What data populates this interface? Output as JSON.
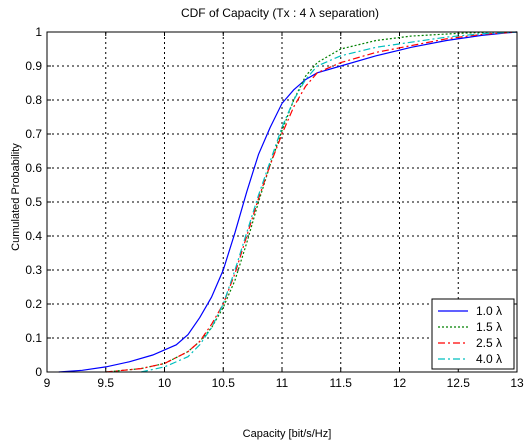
{
  "chart_data": {
    "type": "line",
    "title": "CDF of Capacity (Tx : 4 λ separation)",
    "xlabel": "Capacity [bit/s/Hz]",
    "ylabel": "Cumulated Probability",
    "xlim": [
      9,
      13
    ],
    "ylim": [
      0,
      1
    ],
    "xticks": [
      "9",
      "9.5",
      "10",
      "10.5",
      "11",
      "11.5",
      "12",
      "12.5",
      "13"
    ],
    "yticks": [
      "0",
      "0.1",
      "0.2",
      "0.3",
      "0.4",
      "0.5",
      "0.6",
      "0.7",
      "0.8",
      "0.9",
      "1"
    ],
    "grid": true,
    "legend_position": "bottom-right",
    "series": [
      {
        "name": "1.0 λ",
        "color": "#0000ff",
        "dash": "solid",
        "points": [
          [
            9.1,
            0
          ],
          [
            9.3,
            0.005
          ],
          [
            9.5,
            0.015
          ],
          [
            9.7,
            0.03
          ],
          [
            9.9,
            0.05
          ],
          [
            10.0,
            0.065
          ],
          [
            10.1,
            0.08
          ],
          [
            10.2,
            0.11
          ],
          [
            10.3,
            0.16
          ],
          [
            10.4,
            0.22
          ],
          [
            10.5,
            0.3
          ],
          [
            10.6,
            0.41
          ],
          [
            10.7,
            0.53
          ],
          [
            10.8,
            0.64
          ],
          [
            10.9,
            0.72
          ],
          [
            11.0,
            0.79
          ],
          [
            11.1,
            0.83
          ],
          [
            11.2,
            0.86
          ],
          [
            11.3,
            0.88
          ],
          [
            11.5,
            0.9
          ],
          [
            11.8,
            0.93
          ],
          [
            12.1,
            0.955
          ],
          [
            12.4,
            0.975
          ],
          [
            12.7,
            0.99
          ],
          [
            12.9,
            0.997
          ],
          [
            13.0,
            1.0
          ]
        ]
      },
      {
        "name": "1.5 λ",
        "color": "#008000",
        "dash": "dotted",
        "points": [
          [
            9.5,
            0
          ],
          [
            9.8,
            0.01
          ],
          [
            10.0,
            0.025
          ],
          [
            10.2,
            0.06
          ],
          [
            10.3,
            0.09
          ],
          [
            10.4,
            0.13
          ],
          [
            10.5,
            0.19
          ],
          [
            10.6,
            0.27
          ],
          [
            10.7,
            0.38
          ],
          [
            10.8,
            0.5
          ],
          [
            10.9,
            0.61
          ],
          [
            11.0,
            0.71
          ],
          [
            11.1,
            0.8
          ],
          [
            11.2,
            0.87
          ],
          [
            11.3,
            0.91
          ],
          [
            11.5,
            0.95
          ],
          [
            11.8,
            0.975
          ],
          [
            12.1,
            0.988
          ],
          [
            12.5,
            0.996
          ],
          [
            12.8,
            1.0
          ]
        ]
      },
      {
        "name": "2.5 λ",
        "color": "#ff0000",
        "dash": "dashdot",
        "points": [
          [
            9.5,
            0
          ],
          [
            9.8,
            0.01
          ],
          [
            10.0,
            0.025
          ],
          [
            10.2,
            0.06
          ],
          [
            10.3,
            0.09
          ],
          [
            10.4,
            0.14
          ],
          [
            10.5,
            0.2
          ],
          [
            10.6,
            0.29
          ],
          [
            10.7,
            0.4
          ],
          [
            10.8,
            0.51
          ],
          [
            10.9,
            0.61
          ],
          [
            11.0,
            0.7
          ],
          [
            11.1,
            0.78
          ],
          [
            11.2,
            0.84
          ],
          [
            11.3,
            0.88
          ],
          [
            11.5,
            0.91
          ],
          [
            11.8,
            0.94
          ],
          [
            12.1,
            0.96
          ],
          [
            12.4,
            0.98
          ],
          [
            12.7,
            0.993
          ],
          [
            13.0,
            1.0
          ]
        ]
      },
      {
        "name": "4.0 λ",
        "color": "#00bfbf",
        "dash": "dashdot",
        "points": [
          [
            9.8,
            0
          ],
          [
            10.0,
            0.015
          ],
          [
            10.2,
            0.045
          ],
          [
            10.3,
            0.08
          ],
          [
            10.4,
            0.13
          ],
          [
            10.5,
            0.2
          ],
          [
            10.6,
            0.3
          ],
          [
            10.7,
            0.41
          ],
          [
            10.8,
            0.52
          ],
          [
            10.9,
            0.62
          ],
          [
            11.0,
            0.72
          ],
          [
            11.1,
            0.8
          ],
          [
            11.2,
            0.86
          ],
          [
            11.3,
            0.9
          ],
          [
            11.5,
            0.93
          ],
          [
            11.8,
            0.955
          ],
          [
            12.1,
            0.97
          ],
          [
            12.4,
            0.985
          ],
          [
            12.7,
            0.995
          ],
          [
            13.0,
            1.0
          ]
        ]
      }
    ]
  }
}
